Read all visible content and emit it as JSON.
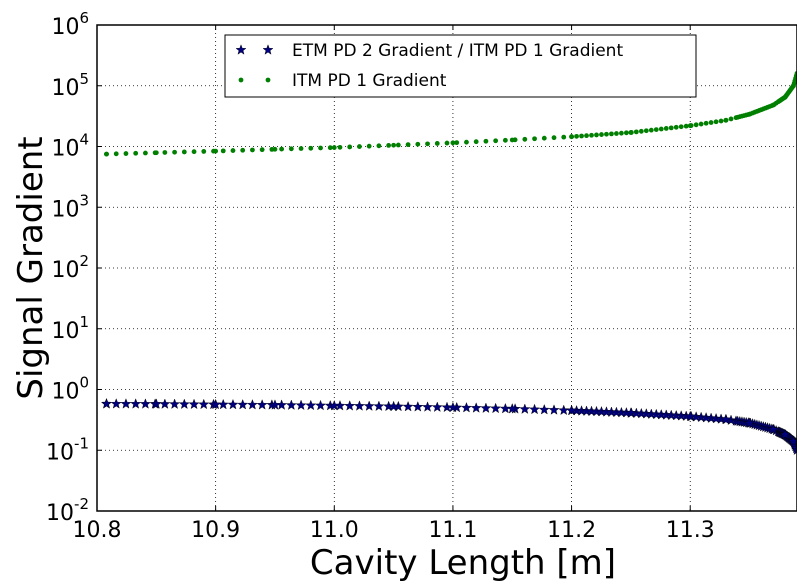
{
  "chart_data": {
    "type": "scatter",
    "xlabel": "Cavity Length [m]",
    "ylabel": "Signal Gradient",
    "xlim": [
      10.8,
      11.39
    ],
    "ylim": [
      0.01,
      1000000
    ],
    "yscale": "log",
    "grid": true,
    "legend_position": "top-center",
    "x_ticks": [
      "10.8",
      "10.9",
      "11.0",
      "11.1",
      "11.2",
      "11.3"
    ],
    "y_ticks": [
      {
        "value": 0.01,
        "base": "10",
        "exp": "-2"
      },
      {
        "value": 0.1,
        "base": "10",
        "exp": "-1"
      },
      {
        "value": 1,
        "base": "10",
        "exp": "0"
      },
      {
        "value": 10,
        "base": "10",
        "exp": "1"
      },
      {
        "value": 100,
        "base": "10",
        "exp": "2"
      },
      {
        "value": 1000,
        "base": "10",
        "exp": "3"
      },
      {
        "value": 10000,
        "base": "10",
        "exp": "4"
      },
      {
        "value": 100000,
        "base": "10",
        "exp": "5"
      },
      {
        "value": 1000000,
        "base": "10",
        "exp": "6"
      }
    ],
    "series": [
      {
        "name": "ETM PD 2 Gradient / ITM PD 1 Gradient",
        "marker": "star",
        "color": "#00007f",
        "x": [
          10.808,
          10.85,
          10.9,
          10.95,
          11.0,
          11.05,
          11.1,
          11.15,
          11.2,
          11.25,
          11.3,
          11.33,
          11.35,
          11.37,
          11.38,
          11.387,
          11.39
        ],
        "y": [
          0.58,
          0.575,
          0.565,
          0.555,
          0.54,
          0.525,
          0.505,
          0.48,
          0.45,
          0.41,
          0.36,
          0.32,
          0.28,
          0.22,
          0.18,
          0.14,
          0.1
        ]
      },
      {
        "name": "ITM PD 1 Gradient",
        "marker": "dot",
        "color": "#007f00",
        "x": [
          10.808,
          10.85,
          10.9,
          10.95,
          11.0,
          11.05,
          11.1,
          11.15,
          11.2,
          11.25,
          11.3,
          11.33,
          11.35,
          11.37,
          11.38,
          11.387,
          11.39
        ],
        "y": [
          7500,
          7900,
          8400,
          9000,
          9600,
          10500,
          11500,
          12800,
          14500,
          17000,
          22000,
          27000,
          34000,
          48000,
          65000,
          100000,
          160000
        ]
      }
    ]
  }
}
